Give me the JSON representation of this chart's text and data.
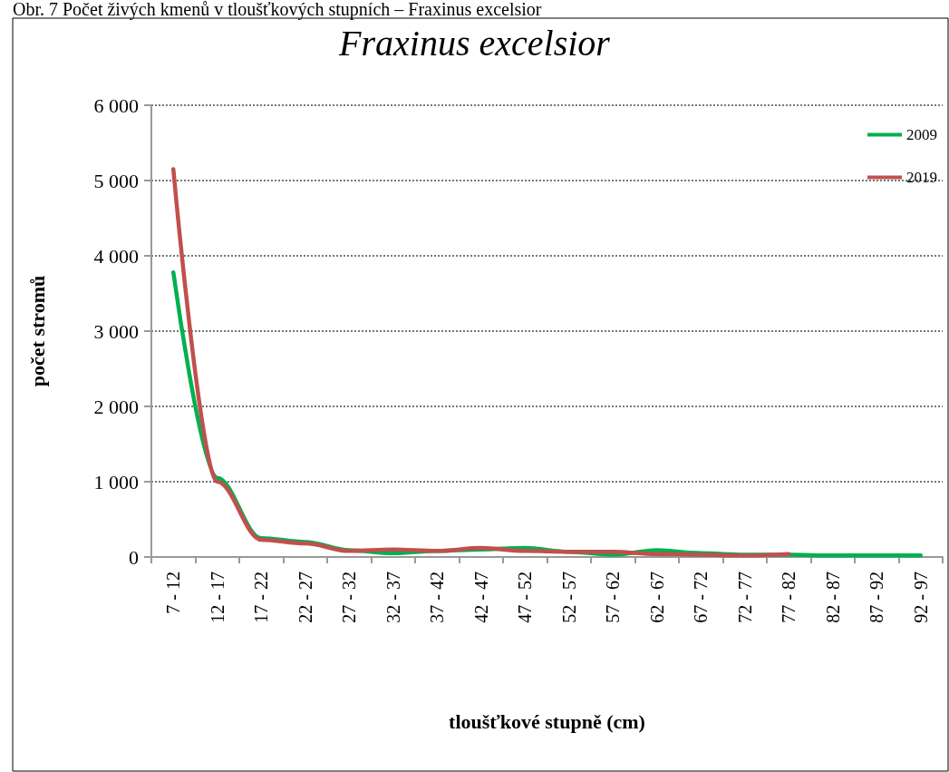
{
  "chart_data": {
    "type": "line",
    "title": "Fraxinus excelsior",
    "xlabel": "tloušťkové stupně (cm)",
    "ylabel": "počet stromů",
    "annotations": [
      "Obr. 7 Počet živých kmenů v tloušťkových stupních – Fraxinus excelsior"
    ],
    "categories": [
      "7 - 12",
      "12 - 17",
      "17 - 22",
      "22 - 27",
      "27 - 32",
      "32 - 37",
      "37 - 42",
      "42 - 47",
      "47 - 52",
      "52 - 57",
      "57 - 62",
      "62 - 67",
      "67 - 72",
      "72 - 77",
      "77 - 82",
      "82 - 87",
      "87 - 92",
      "92 - 97"
    ],
    "series": [
      {
        "name": "2009",
        "color": "#00b050",
        "values": [
          3780,
          1050,
          250,
          200,
          90,
          50,
          80,
          100,
          120,
          70,
          30,
          90,
          50,
          30,
          30,
          20,
          20,
          20
        ]
      },
      {
        "name": "2019",
        "color": "#c0504d",
        "values": [
          5150,
          1000,
          230,
          180,
          80,
          100,
          80,
          120,
          80,
          70,
          70,
          40,
          30,
          20,
          40,
          null,
          null,
          null
        ]
      }
    ],
    "ylim": [
      0,
      6000
    ],
    "yticks": [
      {
        "value": 0,
        "label": "0"
      },
      {
        "value": 1000,
        "label": "1 000"
      },
      {
        "value": 2000,
        "label": "2 000"
      },
      {
        "value": 3000,
        "label": "3 000"
      },
      {
        "value": 4000,
        "label": "4 000"
      },
      {
        "value": 5000,
        "label": "5 000"
      },
      {
        "value": 6000,
        "label": "6 000"
      }
    ],
    "grid": "y",
    "legend": "top right",
    "marker": "none",
    "line_style": "solid"
  }
}
